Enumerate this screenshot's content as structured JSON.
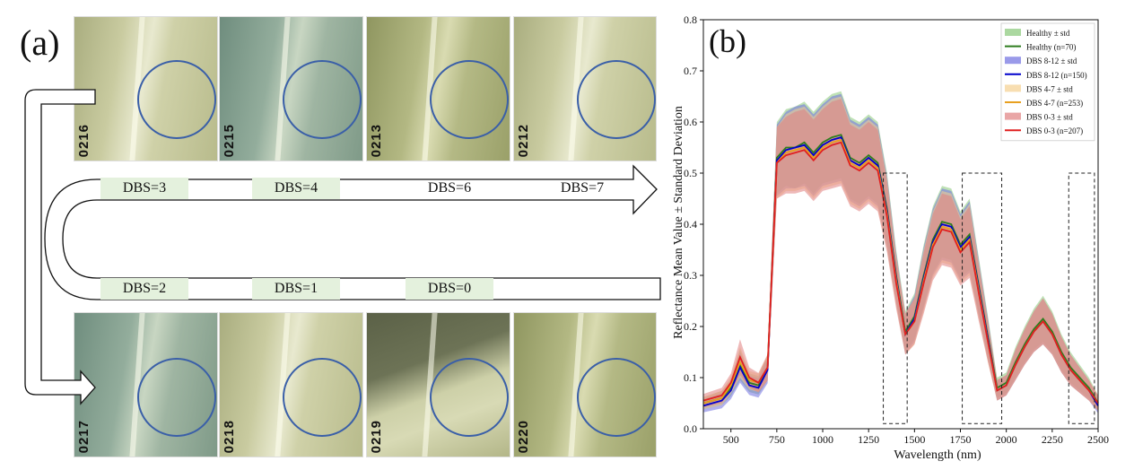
{
  "panel_a": {
    "label": "(a)",
    "top_leaves": [
      {
        "id": "0216",
        "theme": "pale"
      },
      {
        "id": "0215",
        "theme": "teal"
      },
      {
        "id": "0213",
        "theme": "olive"
      },
      {
        "id": "0212",
        "theme": "pale"
      }
    ],
    "bottom_leaves": [
      {
        "id": "0217",
        "theme": "teal"
      },
      {
        "id": "0218",
        "theme": "pale"
      },
      {
        "id": "0219",
        "theme": "shadow"
      },
      {
        "id": "0220",
        "theme": "olive"
      }
    ],
    "top_dbs": [
      "DBS=3",
      "DBS=4",
      "DBS=6",
      "DBS=7"
    ],
    "bottom_dbs": [
      "DBS=2",
      "DBS=1",
      "DBS=0"
    ]
  },
  "chart_data": {
    "type": "line",
    "label": "(b)",
    "xlabel": "Wavelength (nm)",
    "ylabel": "Reflectance Mean Value ± Standard Deviation",
    "xlim": [
      350,
      2500
    ],
    "ylim": [
      0,
      0.8
    ],
    "xticks": [
      500,
      750,
      1000,
      1250,
      1500,
      1750,
      2000,
      2250,
      2500
    ],
    "yticks": [
      0.0,
      0.1,
      0.2,
      0.3,
      0.4,
      0.5,
      0.6,
      0.7,
      0.8
    ],
    "grid": false,
    "legend_position": "top-right",
    "x": [
      350,
      450,
      500,
      550,
      600,
      650,
      700,
      750,
      800,
      850,
      900,
      950,
      1000,
      1050,
      1100,
      1150,
      1200,
      1250,
      1300,
      1350,
      1400,
      1450,
      1500,
      1550,
      1600,
      1650,
      1700,
      1750,
      1800,
      1850,
      1900,
      1950,
      2000,
      2050,
      2100,
      2150,
      2200,
      2250,
      2300,
      2350,
      2400,
      2450,
      2500
    ],
    "series": [
      {
        "name": "Healthy (n=70)",
        "band_label": "Healthy ± std",
        "color": "#2e7d1e",
        "band_color": "#88c878",
        "values": [
          0.05,
          0.06,
          0.08,
          0.125,
          0.09,
          0.085,
          0.12,
          0.53,
          0.55,
          0.55,
          0.56,
          0.54,
          0.56,
          0.57,
          0.575,
          0.53,
          0.52,
          0.535,
          0.52,
          0.43,
          0.3,
          0.19,
          0.22,
          0.3,
          0.37,
          0.405,
          0.4,
          0.36,
          0.38,
          0.28,
          0.18,
          0.08,
          0.09,
          0.13,
          0.165,
          0.195,
          0.215,
          0.19,
          0.15,
          0.12,
          0.1,
          0.08,
          0.05
        ],
        "std": [
          0.012,
          0.014,
          0.016,
          0.03,
          0.018,
          0.018,
          0.025,
          0.07,
          0.075,
          0.08,
          0.08,
          0.08,
          0.08,
          0.085,
          0.085,
          0.08,
          0.08,
          0.08,
          0.08,
          0.07,
          0.05,
          0.04,
          0.045,
          0.06,
          0.065,
          0.07,
          0.07,
          0.065,
          0.07,
          0.055,
          0.04,
          0.02,
          0.02,
          0.03,
          0.035,
          0.04,
          0.045,
          0.04,
          0.035,
          0.03,
          0.025,
          0.02,
          0.015
        ]
      },
      {
        "name": "DBS 8-12 (n=150)",
        "band_label": "DBS 8-12 ± std",
        "color": "#0000cc",
        "band_color": "#6f6fe0",
        "values": [
          0.045,
          0.055,
          0.075,
          0.12,
          0.085,
          0.08,
          0.115,
          0.525,
          0.545,
          0.55,
          0.555,
          0.535,
          0.555,
          0.565,
          0.57,
          0.525,
          0.515,
          0.53,
          0.515,
          0.425,
          0.295,
          0.185,
          0.215,
          0.295,
          0.365,
          0.4,
          0.395,
          0.355,
          0.375,
          0.275,
          0.175,
          0.075,
          0.085,
          0.125,
          0.16,
          0.19,
          0.21,
          0.185,
          0.145,
          0.115,
          0.095,
          0.075,
          0.045
        ],
        "std": [
          0.013,
          0.015,
          0.017,
          0.03,
          0.019,
          0.019,
          0.026,
          0.07,
          0.075,
          0.08,
          0.08,
          0.08,
          0.08,
          0.085,
          0.085,
          0.08,
          0.08,
          0.08,
          0.08,
          0.07,
          0.05,
          0.04,
          0.045,
          0.06,
          0.065,
          0.07,
          0.07,
          0.065,
          0.07,
          0.055,
          0.04,
          0.02,
          0.02,
          0.03,
          0.035,
          0.04,
          0.045,
          0.04,
          0.035,
          0.03,
          0.025,
          0.02,
          0.015
        ]
      },
      {
        "name": "DBS 4-7 (n=253)",
        "band_label": "DBS 4-7 ± std",
        "color": "#e8a020",
        "band_color": "#f5d090",
        "values": [
          0.05,
          0.06,
          0.085,
          0.13,
          0.095,
          0.09,
          0.12,
          0.52,
          0.54,
          0.545,
          0.55,
          0.53,
          0.55,
          0.56,
          0.565,
          0.52,
          0.51,
          0.525,
          0.51,
          0.42,
          0.29,
          0.185,
          0.21,
          0.29,
          0.36,
          0.395,
          0.39,
          0.35,
          0.37,
          0.27,
          0.17,
          0.075,
          0.085,
          0.125,
          0.16,
          0.19,
          0.21,
          0.185,
          0.145,
          0.115,
          0.095,
          0.075,
          0.05
        ],
        "std": [
          0.012,
          0.014,
          0.016,
          0.03,
          0.018,
          0.018,
          0.025,
          0.07,
          0.075,
          0.08,
          0.08,
          0.08,
          0.08,
          0.085,
          0.085,
          0.08,
          0.08,
          0.08,
          0.08,
          0.07,
          0.05,
          0.04,
          0.045,
          0.06,
          0.065,
          0.07,
          0.07,
          0.065,
          0.07,
          0.055,
          0.04,
          0.02,
          0.02,
          0.03,
          0.035,
          0.04,
          0.045,
          0.04,
          0.035,
          0.03,
          0.025,
          0.02,
          0.015
        ]
      },
      {
        "name": "DBS 0-3 (n=207)",
        "band_label": "DBS 0-3 ± std",
        "color": "#e02020",
        "band_color": "#e08080",
        "values": [
          0.055,
          0.065,
          0.09,
          0.14,
          0.1,
          0.09,
          0.12,
          0.52,
          0.535,
          0.54,
          0.545,
          0.525,
          0.545,
          0.555,
          0.56,
          0.515,
          0.505,
          0.52,
          0.505,
          0.415,
          0.285,
          0.185,
          0.21,
          0.285,
          0.355,
          0.39,
          0.385,
          0.345,
          0.365,
          0.265,
          0.17,
          0.075,
          0.085,
          0.125,
          0.16,
          0.19,
          0.21,
          0.185,
          0.145,
          0.115,
          0.095,
          0.075,
          0.05
        ],
        "std": [
          0.013,
          0.015,
          0.018,
          0.035,
          0.02,
          0.019,
          0.026,
          0.07,
          0.075,
          0.08,
          0.08,
          0.08,
          0.08,
          0.085,
          0.085,
          0.08,
          0.08,
          0.08,
          0.08,
          0.07,
          0.05,
          0.04,
          0.045,
          0.06,
          0.065,
          0.07,
          0.07,
          0.065,
          0.07,
          0.055,
          0.04,
          0.02,
          0.02,
          0.03,
          0.035,
          0.04,
          0.045,
          0.04,
          0.035,
          0.03,
          0.025,
          0.02,
          0.015
        ]
      }
    ],
    "highlight_regions": [
      {
        "x0": 1330,
        "x1": 1460,
        "y0": 0.01,
        "y1": 0.5
      },
      {
        "x0": 1760,
        "x1": 1975,
        "y0": 0.01,
        "y1": 0.5
      },
      {
        "x0": 2340,
        "x1": 2480,
        "y0": 0.01,
        "y1": 0.5
      }
    ]
  }
}
